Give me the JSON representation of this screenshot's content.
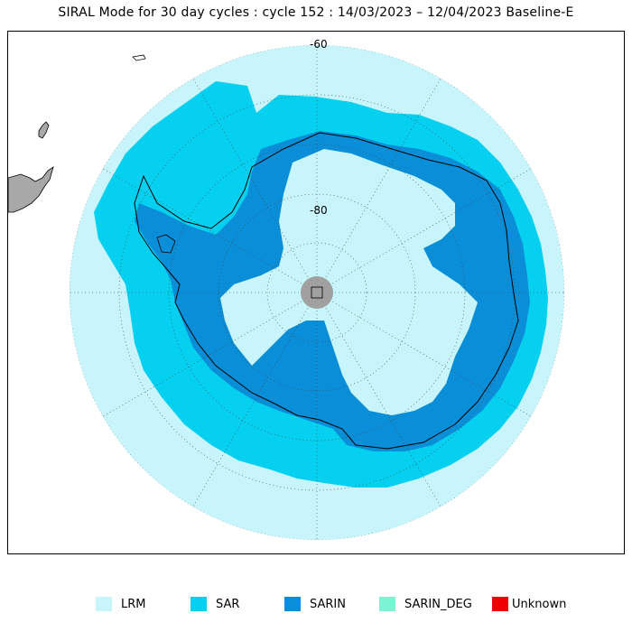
{
  "title": "SIRAL Mode for 30 day cycles : cycle 152 : 14/03/2023 – 12/04/2023 Baseline-E",
  "lat_labels": [
    "-60",
    "-80"
  ],
  "colors": {
    "lrm": "#c8f4fc",
    "sar": "#05d0f0",
    "sarin": "#0a8ed8",
    "sarin_deg": "#7cf4d4",
    "unknown": "#f00000",
    "land": "#a8a8a8",
    "pole_hole": "#a0a0a0"
  },
  "legend": [
    {
      "key": "lrm",
      "label": "LRM",
      "color": "#c8f4fc"
    },
    {
      "key": "sar",
      "label": "SAR",
      "color": "#05d0f0"
    },
    {
      "key": "sarin",
      "label": "SARIN",
      "color": "#0a8ed8"
    },
    {
      "key": "sarin_deg",
      "label": "SARIN_DEG",
      "color": "#7cf4d4"
    },
    {
      "key": "unknown",
      "label": "Unknown",
      "color": "#f00000"
    }
  ]
}
